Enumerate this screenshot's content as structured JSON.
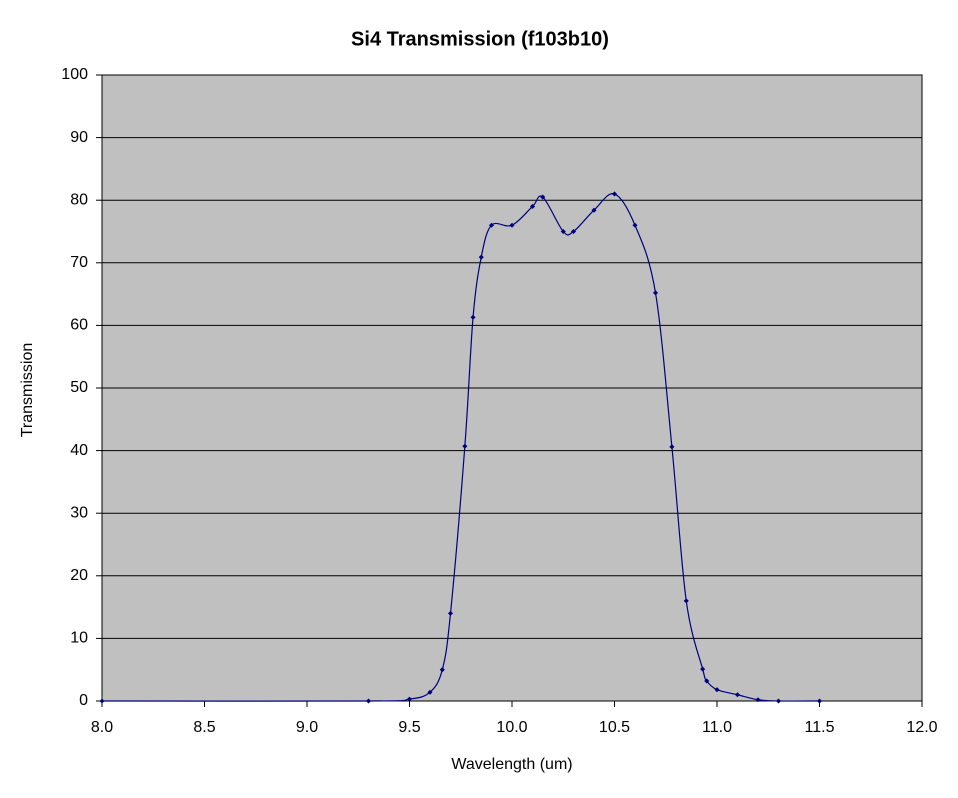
{
  "chart_data": {
    "type": "line",
    "title": "Si4 Transmission (f103b10)",
    "x_label": "Wavelength (um)",
    "y_label": "Transmission",
    "x": [
      8.0,
      9.3,
      9.5,
      9.6,
      9.66,
      9.7,
      9.77,
      9.81,
      9.85,
      9.9,
      10.0,
      10.1,
      10.15,
      10.25,
      10.3,
      10.4,
      10.5,
      10.6,
      10.7,
      10.78,
      10.85,
      10.93,
      10.95,
      11.0,
      11.1,
      11.2,
      11.3,
      11.5
    ],
    "series": [
      {
        "name": "Transmission",
        "color": "#000080",
        "values": [
          0,
          0,
          0.3,
          1.4,
          5,
          14,
          40.7,
          61.3,
          70.9,
          76,
          76,
          79,
          80.5,
          75,
          75,
          78.4,
          81,
          76,
          65.2,
          40.6,
          16,
          5.1,
          3.2,
          1.8,
          1,
          0.2,
          0,
          0
        ]
      }
    ],
    "xlim": [
      8,
      12
    ],
    "xticks": [
      {
        "value": 8,
        "label": "8.0"
      },
      8.5,
      {
        "value": 9,
        "label": "9.0"
      },
      9.5,
      {
        "value": 10,
        "label": "10.0"
      },
      10.5,
      {
        "value": 11,
        "label": "11.0"
      },
      11.5,
      {
        "value": 12,
        "label": "12.0"
      }
    ],
    "ylim": [
      0,
      100
    ],
    "yticks": [
      0,
      10,
      20,
      30,
      40,
      50,
      60,
      70,
      80,
      90,
      100
    ],
    "grid": true,
    "plot_background": "#c0c0c0"
  }
}
